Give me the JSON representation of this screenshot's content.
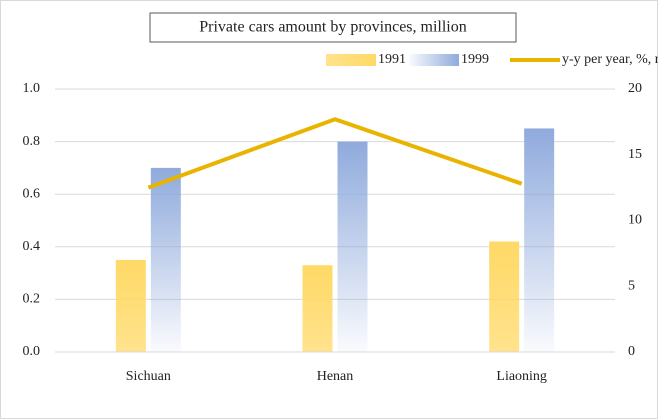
{
  "chart_data": {
    "type": "bar",
    "title": "Private cars amount by provinces, million",
    "categories": [
      "Sichuan",
      "Henan",
      "Liaoning"
    ],
    "series": [
      {
        "name": "1991",
        "color": "#ffd966",
        "values": [
          0.35,
          0.33,
          0.42
        ]
      },
      {
        "name": "1999",
        "color": "#8faadc",
        "values": [
          0.7,
          0.8,
          0.85
        ]
      },
      {
        "name": "y-y per year, %, right",
        "color": "#e8b400",
        "type": "line",
        "axis": "y2",
        "values": [
          12.5,
          17.7,
          12.8
        ]
      }
    ],
    "ylim": [
      0,
      1.0
    ],
    "yticks": [
      {
        "value": 0,
        "label": "0.0"
      },
      0.2,
      0.4,
      0.6,
      0.8,
      {
        "value": 1.0,
        "label": "1.0"
      }
    ],
    "y2lim": [
      0,
      20
    ],
    "y2ticks": [
      0,
      5,
      10,
      15,
      20
    ],
    "grid": true,
    "legend": "top"
  }
}
